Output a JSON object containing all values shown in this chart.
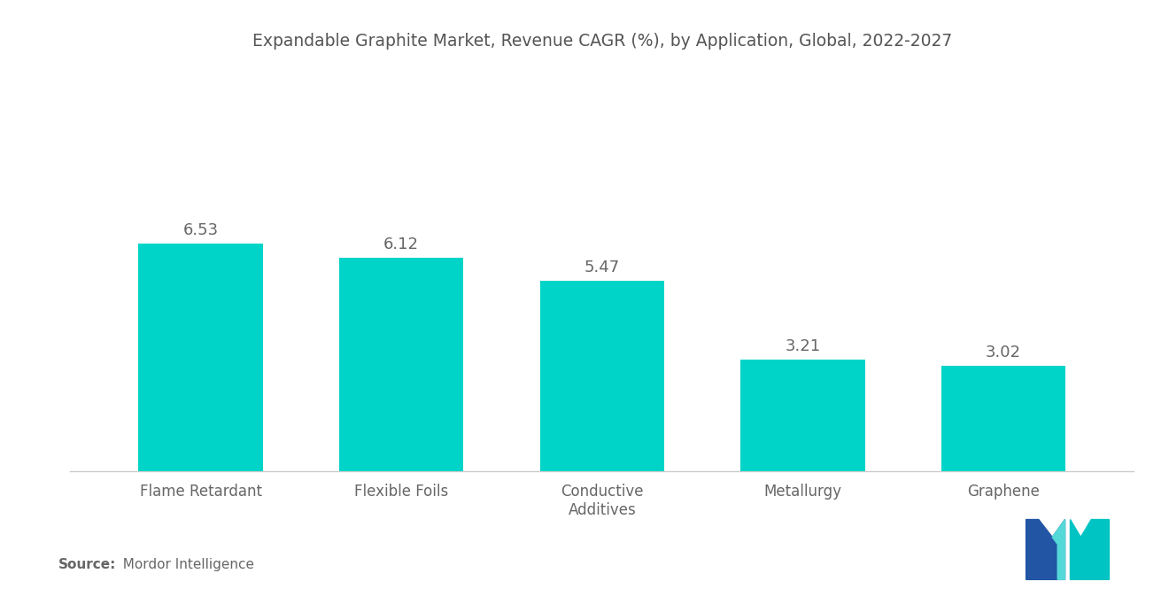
{
  "title": "Expandable Graphite Market, Revenue CAGR (%), by Application, Global, 2022-2027",
  "categories": [
    "Flame Retardant",
    "Flexible Foils",
    "Conductive\nAdditives",
    "Metallurgy",
    "Graphene"
  ],
  "values": [
    6.53,
    6.12,
    5.47,
    3.21,
    3.02
  ],
  "bar_color": "#00D4C8",
  "value_label_color": "#666666",
  "title_color": "#555555",
  "source_bold": "Source:",
  "source_regular": "  Mordor Intelligence",
  "background_color": "#ffffff",
  "ylim": [
    0,
    11.5
  ],
  "title_fontsize": 13.5,
  "label_fontsize": 12,
  "value_fontsize": 13,
  "source_fontsize": 11,
  "bar_width": 0.62,
  "logo_left_color": "#2255A4",
  "logo_right_color": "#00C4C4",
  "logo_highlight_color": "#55D8D8"
}
